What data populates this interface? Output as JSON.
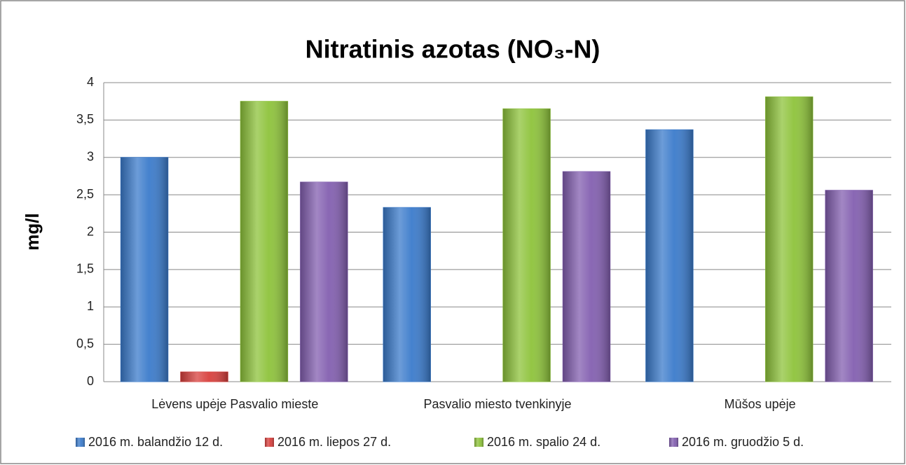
{
  "chart_data": {
    "type": "bar",
    "title": "Nitratinis azotas (NO₃-N)",
    "y_label": "mg/l",
    "categories": [
      "Lėvens upėje Pasvalio mieste",
      "Pasvalio miesto tvenkinyje",
      "Mūšos upėje"
    ],
    "series": [
      {
        "name": "2016 m. balandžio 12 d.",
        "color": "#3b7bcb",
        "values": [
          3.0,
          2.33,
          3.37
        ]
      },
      {
        "name": "2016 m. liepos 27 d.",
        "color": "#d8403d",
        "values": [
          0.13,
          null,
          null
        ]
      },
      {
        "name": "2016 m. spalio 24 d.",
        "color": "#8ec33b",
        "values": [
          3.75,
          3.65,
          3.81
        ]
      },
      {
        "name": "2016 m. gruodžio 5 d.",
        "color": "#835fb0",
        "values": [
          2.67,
          2.81,
          2.56
        ]
      }
    ],
    "ylim": [
      0,
      4
    ],
    "yticks": [
      0,
      {
        "value": 0.5,
        "label": "0,5"
      },
      1,
      {
        "value": 1.5,
        "label": "1,5"
      },
      2,
      {
        "value": 2.5,
        "label": "2,5"
      },
      3,
      {
        "value": 3.5,
        "label": "3,5"
      },
      4
    ],
    "grid": true,
    "legend": "bottom"
  }
}
